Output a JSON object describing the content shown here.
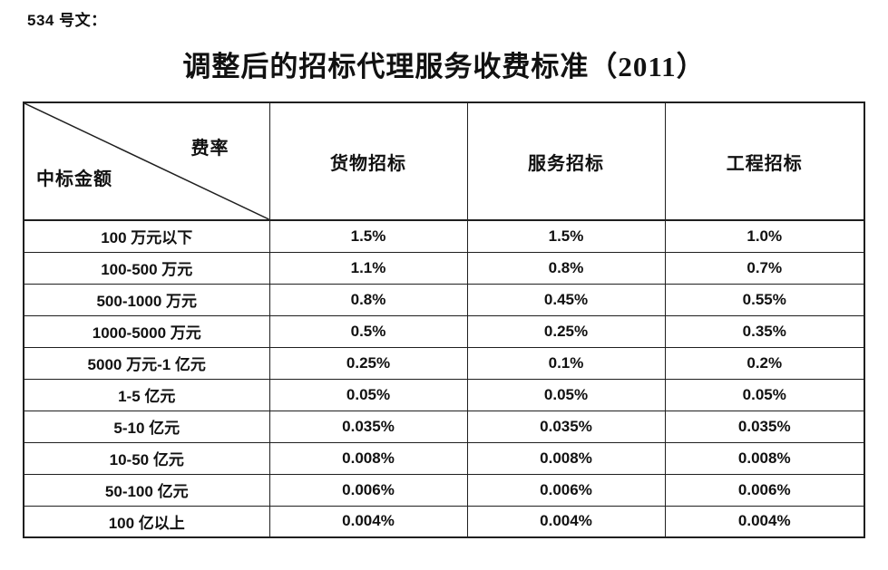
{
  "doc_label": "534 号文：",
  "title": "调整后的招标代理服务收费标准（2011）",
  "table": {
    "corner": {
      "top_right": "费率",
      "bottom_left": "中标金额"
    },
    "columns": [
      "货物招标",
      "服务招标",
      "工程招标"
    ],
    "rows": [
      {
        "label": "100 万元以下",
        "values": [
          "1.5%",
          "1.5%",
          "1.0%"
        ]
      },
      {
        "label": "100-500 万元",
        "values": [
          "1.1%",
          "0.8%",
          "0.7%"
        ]
      },
      {
        "label": "500-1000 万元",
        "values": [
          "0.8%",
          "0.45%",
          "0.55%"
        ]
      },
      {
        "label": "1000-5000 万元",
        "values": [
          "0.5%",
          "0.25%",
          "0.35%"
        ]
      },
      {
        "label": "5000 万元-1 亿元",
        "values": [
          "0.25%",
          "0.1%",
          "0.2%"
        ]
      },
      {
        "label": "1-5 亿元",
        "values": [
          "0.05%",
          "0.05%",
          "0.05%"
        ]
      },
      {
        "label": "5-10 亿元",
        "values": [
          "0.035%",
          "0.035%",
          "0.035%"
        ]
      },
      {
        "label": "10-50 亿元",
        "values": [
          "0.008%",
          "0.008%",
          "0.008%"
        ]
      },
      {
        "label": "50-100 亿元",
        "values": [
          "0.006%",
          "0.006%",
          "0.006%"
        ]
      },
      {
        "label": "100 亿以上",
        "values": [
          "0.004%",
          "0.004%",
          "0.004%"
        ]
      }
    ]
  },
  "colors": {
    "background": "#ffffff",
    "text": "#111111",
    "border": "#1f1f1f"
  }
}
